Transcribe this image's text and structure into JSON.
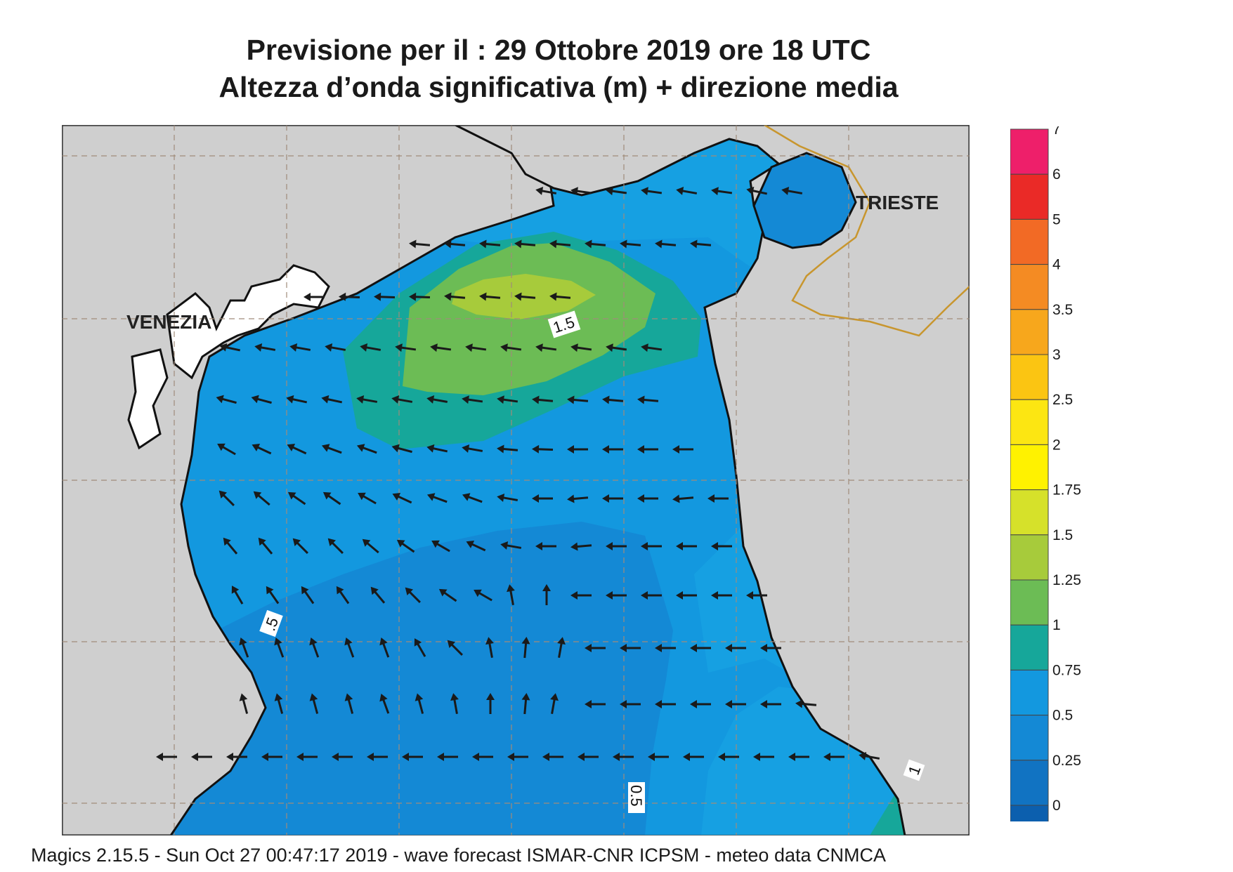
{
  "title": {
    "line1": "Previsione per il  :  29  Ottobre  2019   ore 18 UTC",
    "line2": "Altezza d’onda significativa (m) + direzione media"
  },
  "map": {
    "cities": [
      {
        "name": "VENEZIA"
      },
      {
        "name": "TRIESTE"
      }
    ],
    "contour_labels": [
      "1.5",
      ".5",
      "0.5",
      "1"
    ],
    "colors": {
      "land": "#cfcfcf",
      "coast": "#111111",
      "border": "#c8962e",
      "grid": "#a08c7a",
      "arrow": "#1a1a1a"
    },
    "arrow_field": "mean wave direction"
  },
  "colorbar": {
    "ticks": [
      "7",
      "6",
      "5",
      "4",
      "3.5",
      "3",
      "2.5",
      "2",
      "1.75",
      "1.5",
      "1.25",
      "1",
      "0.75",
      "0.5",
      "0.25",
      "0"
    ],
    "colors": [
      "#ee1f6a",
      "#ea2a27",
      "#f26a25",
      "#f48b23",
      "#f7a71c",
      "#fbc512",
      "#fce612",
      "#fff200",
      "#d6e12a",
      "#a7cb3b",
      "#6cbc55",
      "#16a79a",
      "#1398df",
      "#1489d5",
      "#1173c2",
      "#0c5fae"
    ]
  },
  "footer": "Magics 2.15.5 - Sun Oct 27 00:47:17 2019 - wave forecast  ISMAR-CNR  ICPSM - meteo data   CNMCA"
}
